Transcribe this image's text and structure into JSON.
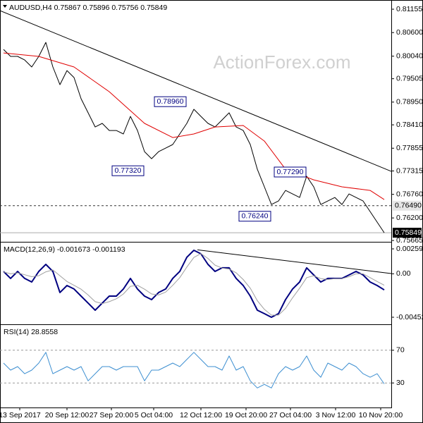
{
  "chart_data": [
    {
      "type": "line",
      "title": "AUDUSD,H4 0.75867 0.75896 0.75756 0.75849",
      "watermark": "ActionForex.com",
      "xlim": [
        -0.5,
        55
      ],
      "ylim": [
        0.7565,
        0.8134
      ],
      "yticks": [
        0.81155,
        {
          "value": 0.806,
          "label": "0.80600"
        },
        {
          "value": 0.8004,
          "label": "0.80040"
        },
        0.79505,
        {
          "value": 0.7895,
          "label": "0.78950"
        },
        {
          "value": 0.7841,
          "label": "0.78410"
        },
        0.77855,
        0.77315,
        {
          "value": 0.7676,
          "label": "0.76760"
        },
        {
          "value": 0.762,
          "label": "0.76200"
        },
        0.75665
      ],
      "series": [
        {
          "color": "#000000",
          "values": [
            0.80201,
            0.80034,
            0.80034,
            0.7995,
            0.79783,
            0.80034,
            0.80368,
            0.79783,
            0.79364,
            0.79699,
            0.79532,
            0.7903,
            0.78695,
            0.7836,
            0.78444,
            0.78276,
            0.78276,
            0.78193,
            0.78611,
            0.78276,
            0.77774,
            0.77607,
            0.77774,
            0.77858,
            0.77942,
            0.78193,
            0.78444,
            0.78779,
            0.78611,
            0.78444,
            0.7836,
            0.78527,
            0.78695,
            0.7836,
            0.78276,
            0.77942,
            0.77356,
            0.76938,
            0.76519,
            0.76603,
            0.76854,
            0.7677,
            0.76686,
            0.77189,
            0.76938,
            0.76519,
            0.76603,
            0.76686,
            0.76519,
            0.7677,
            0.76686,
            0.76603,
            0.76352,
            0.76101,
            0.75849
          ]
        },
        {
          "color": "#e00000",
          "x": [
            0,
            5,
            10,
            15,
            20,
            24,
            27,
            30,
            34,
            37,
            40,
            44,
            48,
            52,
            54
          ],
          "values": [
            0.80117,
            0.80034,
            0.79783,
            0.79197,
            0.78444,
            0.78109,
            0.78193,
            0.7836,
            0.78394,
            0.78025,
            0.77356,
            0.77105,
            0.76938,
            0.76854,
            0.76636
          ]
        }
      ],
      "trendlines": [
        {
          "x": [
            -0.5,
            55
          ],
          "values": [
            0.81122,
            0.77306
          ]
        }
      ],
      "levels": [
        {
          "value": 0.7649,
          "label": "0.76490",
          "style": "dashed"
        },
        {
          "value": 0.75849,
          "label": "0.75849",
          "style": "current"
        }
      ],
      "annotations": [
        {
          "x": 26,
          "value": 0.7896,
          "label": "0.78960"
        },
        {
          "x": 20,
          "value": 0.7732,
          "label": "0.77320"
        },
        {
          "x": 43,
          "value": 0.7729,
          "label": "0.77290"
        },
        {
          "x": 38,
          "value": 0.7624,
          "label": "0.76240"
        }
      ]
    },
    {
      "type": "line",
      "title": "MACD(12,26,9) -0.001673 -0.001193",
      "xlim": [
        -0.5,
        55
      ],
      "ylim": [
        -0.005109,
        0.003182
      ],
      "yticks": [
        0.002595,
        {
          "value": 0,
          "label": "0.00"
        },
        -0.004522
      ],
      "series": [
        {
          "color": "#000080",
          "width": 2,
          "values": [
            0.00025,
            -0.00048,
            0.00025,
            -0.00048,
            -0.00085,
            0.00025,
            0.00098,
            0.00025,
            -0.00195,
            -0.00122,
            -0.00158,
            -0.00232,
            -0.00305,
            -0.00379,
            -0.00305,
            -0.00232,
            -0.00232,
            -0.00158,
            -0.00048,
            -0.00158,
            -0.00232,
            -0.00269,
            -0.00195,
            -0.00158,
            -0.00048,
            0.00025,
            0.00172,
            0.00245,
            0.00208,
            0.00098,
            0.00025,
            0.00062,
            0.00062,
            -0.00048,
            -0.00122,
            -0.00232,
            -0.00379,
            -0.00415,
            -0.00452,
            -0.00415,
            -0.00269,
            -0.00158,
            -0.00085,
            0.00062,
            -0.00012,
            -0.00085,
            -0.00048,
            -0.00048,
            -0.00048,
            -0.00012,
            0.00025,
            -0.00012,
            -0.00085,
            -0.00122,
            -0.001673
          ]
        },
        {
          "color": "#a0a0a0",
          "width": 1,
          "values": [
            0.0002,
            0,
            0.0001,
            -0.0001,
            -0.0003,
            -0.0002,
            0.0002,
            0.0004,
            -0.0002,
            -0.0008,
            -0.0012,
            -0.0016,
            -0.0022,
            -0.0029,
            -0.0031,
            -0.0029,
            -0.0026,
            -0.0021,
            -0.0013,
            -0.0012,
            -0.0016,
            -0.0021,
            -0.0022,
            -0.0019,
            -0.0012,
            -0.0004,
            0.0007,
            0.0017,
            0.0021,
            0.0016,
            0.0009,
            0.0006,
            0.0005,
            0.0001,
            -0.0006,
            -0.0015,
            -0.0028,
            -0.0037,
            -0.0043,
            -0.0043,
            -0.0036,
            -0.0025,
            -0.0015,
            -0.0004,
            -0.0002,
            -0.0005,
            -0.0006,
            -0.0005,
            -0.0005,
            -0.0003,
            0,
            0,
            -0.0004,
            -0.0008,
            -0.001193
          ]
        }
      ],
      "trendlines": [
        {
          "x": [
            27.5,
            55
          ],
          "values": [
            0.00249,
            3e-05
          ]
        }
      ]
    },
    {
      "type": "line",
      "title": "RSI(14) 28.8558",
      "grid": true,
      "xlim": [
        -0.5,
        55
      ],
      "ylim": [
        0,
        100
      ],
      "yticks": [
        70,
        30
      ],
      "series": [
        {
          "color": "#3d8fd1",
          "width": 1,
          "values": [
            54.3,
            45.7,
            50,
            41.3,
            45.7,
            54.3,
            67.4,
            41.3,
            45.7,
            50,
            45.7,
            50,
            32.6,
            41.3,
            50,
            50,
            45.7,
            50,
            50,
            50,
            32.6,
            45.7,
            45.7,
            50,
            54.3,
            50,
            58.7,
            67.4,
            58.7,
            50,
            50,
            45.7,
            63,
            45.7,
            50,
            32.6,
            23.9,
            28.3,
            23.9,
            41.3,
            50,
            45.7,
            50,
            63,
            45.7,
            37,
            54.3,
            50,
            45.7,
            54.3,
            50,
            41.3,
            37,
            41.3,
            28.86
          ]
        }
      ],
      "xticks": [
        {
          "value": 2.3,
          "label": "13 Sep 2017"
        },
        {
          "value": 9,
          "label": "20 Sep 12:00"
        },
        {
          "value": 15.3,
          "label": "27 Sep 20:00"
        },
        {
          "value": 21.3,
          "label": "5 Oct 04:00"
        },
        {
          "value": 28,
          "label": "12 Oct 12:00"
        },
        {
          "value": 34.4,
          "label": "19 Oct 20:00"
        },
        {
          "value": 40.7,
          "label": "27 Oct 04:00"
        },
        {
          "value": 47.1,
          "label": "3 Nov 12:00"
        },
        {
          "value": 53.5,
          "label": "10 Nov 20:00"
        }
      ]
    }
  ]
}
